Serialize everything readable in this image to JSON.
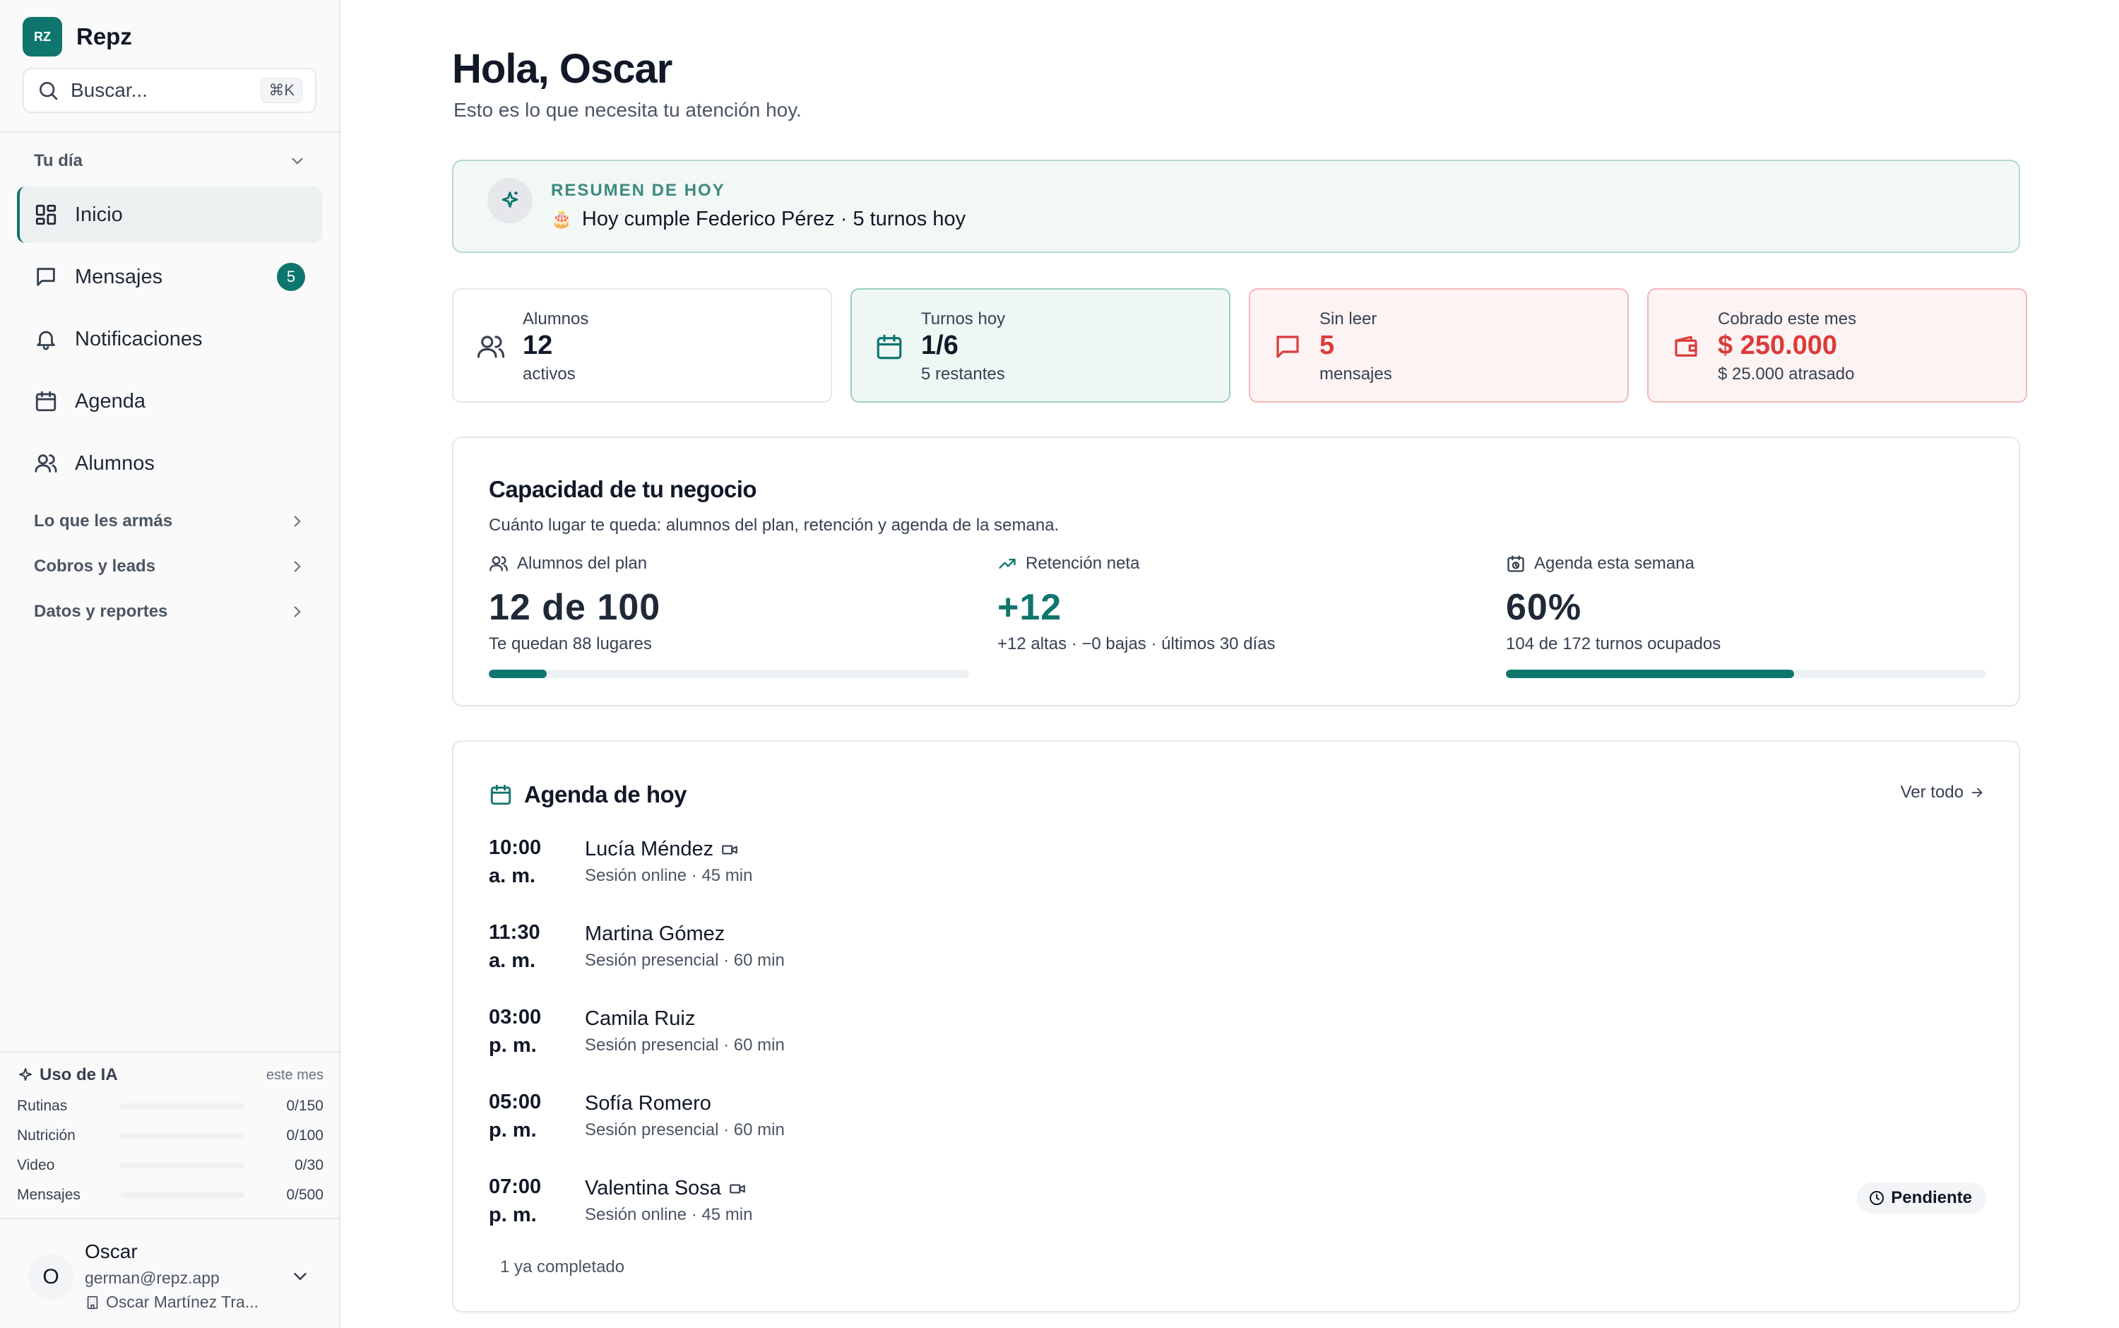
{
  "sidebar": {
    "brand": {
      "logo": "RZ",
      "name": "Repz"
    },
    "search": {
      "placeholder": "Buscar...",
      "shortcut": "⌘K"
    },
    "group_tu_dia": "Tu día",
    "items": [
      {
        "label": "Inicio",
        "icon": "dashboard-icon",
        "active": true
      },
      {
        "label": "Mensajes",
        "icon": "message-icon",
        "badge": "5"
      },
      {
        "label": "Notificaciones",
        "icon": "bell-icon"
      },
      {
        "label": "Agenda",
        "icon": "calendar-icon"
      },
      {
        "label": "Alumnos",
        "icon": "users-icon"
      }
    ],
    "groups": [
      "Lo que les armás",
      "Cobros y leads",
      "Datos y reportes"
    ],
    "ai_usage": {
      "title": "Uso de IA",
      "period": "este mes",
      "rows": [
        {
          "name": "Rutinas",
          "value": "0/150",
          "fraction": 0
        },
        {
          "name": "Nutrición",
          "value": "0/100",
          "fraction": 0
        },
        {
          "name": "Video",
          "value": "0/30",
          "fraction": 0
        },
        {
          "name": "Mensajes",
          "value": "0/500",
          "fraction": 0
        }
      ]
    },
    "user": {
      "initial": "O",
      "name": "Oscar",
      "email": "german@repz.app",
      "org": "Oscar Martínez Tra..."
    }
  },
  "main": {
    "greeting": "Hola, Oscar",
    "subtitle": "Esto es lo que necesita tu atención hoy.",
    "summary": {
      "kicker": "RESUMEN DE HOY",
      "emoji": "🎂",
      "text": "Hoy cumple Federico Pérez · 5 turnos hoy"
    },
    "stats": [
      {
        "label": "Alumnos",
        "value": "12",
        "sub": "activos",
        "tone": "neutral",
        "icon": "users-icon"
      },
      {
        "label": "Turnos hoy",
        "value": "1/6",
        "sub": "5 restantes",
        "tone": "green",
        "icon": "calendar-icon"
      },
      {
        "label": "Sin leer",
        "value": "5",
        "sub": "mensajes",
        "tone": "red",
        "icon": "message-icon"
      },
      {
        "label": "Cobrado este mes",
        "value": "$ 250.000",
        "sub": "$ 25.000 atrasado",
        "tone": "red",
        "icon": "wallet-icon"
      }
    ],
    "capacity": {
      "title": "Capacidad de tu negocio",
      "subtitle": "Cuánto lugar te queda: alumnos del plan, retención y agenda de la semana.",
      "metrics": [
        {
          "label": "Alumnos del plan",
          "value": "12 de 100",
          "sub": "Te quedan 88 lugares",
          "progress": 0.12
        },
        {
          "label": "Retención neta",
          "value": "+12",
          "sub": "+12 altas · −0 bajas · últimos 30 días"
        },
        {
          "label": "Agenda esta semana",
          "value": "60%",
          "sub": "104 de 172 turnos ocupados",
          "progress": 0.6
        }
      ]
    },
    "agenda": {
      "title": "Agenda de hoy",
      "see_all": "Ver todo",
      "items": [
        {
          "time": "10:00",
          "ampm": "a. m.",
          "name": "Lucía Méndez",
          "type": "Sesión online · 45 min",
          "video": true
        },
        {
          "time": "11:30",
          "ampm": "a. m.",
          "name": "Martina Gómez",
          "type": "Sesión presencial · 60 min"
        },
        {
          "time": "03:00",
          "ampm": "p. m.",
          "name": "Camila Ruiz",
          "type": "Sesión presencial · 60 min"
        },
        {
          "time": "05:00",
          "ampm": "p. m.",
          "name": "Sofía Romero",
          "type": "Sesión presencial · 60 min"
        },
        {
          "time": "07:00",
          "ampm": "p. m.",
          "name": "Valentina Sosa",
          "type": "Sesión online · 45 min",
          "video": true,
          "status": "Pendiente"
        }
      ],
      "completed_note": "1 ya completado"
    }
  },
  "colors": {
    "brand": "#0f766e",
    "danger": "#dc3b3b",
    "summary_bg": "#f2f8f6"
  }
}
